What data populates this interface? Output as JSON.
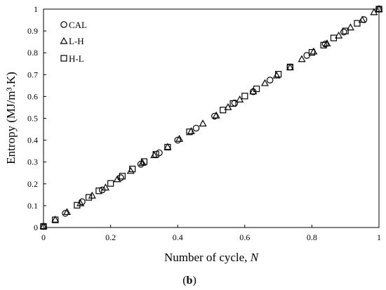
{
  "chart_data": {
    "type": "scatter",
    "xlabel": "Number of cycle, N",
    "xlabel_prefix": "Number of cycle, ",
    "xlabel_var": "N",
    "ylabel": "Entropy (MJ/m³.K)",
    "xlim": [
      0,
      1
    ],
    "ylim": [
      0,
      1
    ],
    "x_ticks": [
      "0",
      "0.2",
      "0.4",
      "0.6",
      "0.8",
      "1"
    ],
    "y_ticks": [
      "0",
      "0.1",
      "0.2",
      "0.3",
      "0.4",
      "0.5",
      "0.6",
      "0.7",
      "0.8",
      "0.9",
      "1"
    ],
    "grid": false,
    "legend_position": "top-left",
    "series": [
      {
        "name": "CAL",
        "marker": "circle",
        "points": [
          [
            0.0,
            0.005
          ],
          [
            0.065,
            0.065
          ],
          [
            0.115,
            0.118
          ],
          [
            0.175,
            0.172
          ],
          [
            0.23,
            0.228
          ],
          [
            0.29,
            0.29
          ],
          [
            0.345,
            0.342
          ],
          [
            0.4,
            0.4
          ],
          [
            0.455,
            0.455
          ],
          [
            0.51,
            0.51
          ],
          [
            0.57,
            0.57
          ],
          [
            0.625,
            0.622
          ],
          [
            0.675,
            0.675
          ],
          [
            0.735,
            0.735
          ],
          [
            0.785,
            0.788
          ],
          [
            0.84,
            0.84
          ],
          [
            0.895,
            0.895
          ],
          [
            0.955,
            0.952
          ],
          [
            1.0,
            1.0
          ]
        ]
      },
      {
        "name": "L-H",
        "marker": "triangle",
        "points": [
          [
            0.0,
            0.005
          ],
          [
            0.035,
            0.035
          ],
          [
            0.07,
            0.07
          ],
          [
            0.11,
            0.11
          ],
          [
            0.145,
            0.145
          ],
          [
            0.185,
            0.182
          ],
          [
            0.22,
            0.22
          ],
          [
            0.26,
            0.258
          ],
          [
            0.295,
            0.295
          ],
          [
            0.33,
            0.33
          ],
          [
            0.37,
            0.368
          ],
          [
            0.405,
            0.405
          ],
          [
            0.44,
            0.44
          ],
          [
            0.475,
            0.475
          ],
          [
            0.515,
            0.512
          ],
          [
            0.55,
            0.55
          ],
          [
            0.585,
            0.585
          ],
          [
            0.625,
            0.622
          ],
          [
            0.66,
            0.66
          ],
          [
            0.695,
            0.695
          ],
          [
            0.735,
            0.732
          ],
          [
            0.77,
            0.77
          ],
          [
            0.805,
            0.805
          ],
          [
            0.845,
            0.842
          ],
          [
            0.88,
            0.878
          ],
          [
            0.915,
            0.915
          ],
          [
            0.95,
            0.95
          ],
          [
            0.985,
            0.985
          ],
          [
            1.0,
            1.0
          ]
        ]
      },
      {
        "name": "H-L",
        "marker": "square",
        "points": [
          [
            0.0,
            0.005
          ],
          [
            0.035,
            0.035
          ],
          [
            0.1,
            0.102
          ],
          [
            0.135,
            0.138
          ],
          [
            0.165,
            0.168
          ],
          [
            0.2,
            0.202
          ],
          [
            0.235,
            0.235
          ],
          [
            0.265,
            0.268
          ],
          [
            0.3,
            0.302
          ],
          [
            0.335,
            0.335
          ],
          [
            0.37,
            0.368
          ],
          [
            0.435,
            0.438
          ],
          [
            0.535,
            0.538
          ],
          [
            0.565,
            0.568
          ],
          [
            0.6,
            0.602
          ],
          [
            0.635,
            0.635
          ],
          [
            0.7,
            0.702
          ],
          [
            0.735,
            0.735
          ],
          [
            0.8,
            0.802
          ],
          [
            0.835,
            0.835
          ],
          [
            0.865,
            0.868
          ],
          [
            0.9,
            0.9
          ],
          [
            0.935,
            0.935
          ],
          [
            1.0,
            1.0
          ]
        ]
      }
    ]
  },
  "caption": {
    "open": "(",
    "letter": "b",
    "close": ")"
  }
}
